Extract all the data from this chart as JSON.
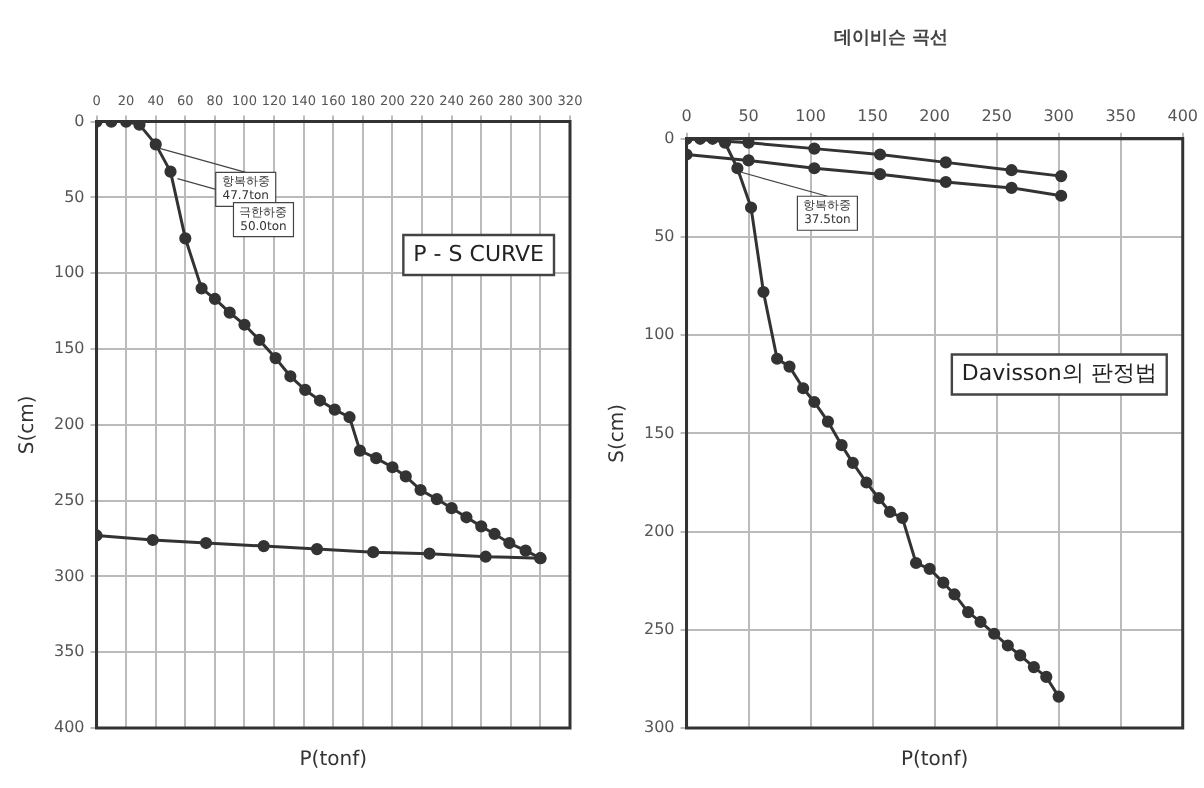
{
  "chart_data": [
    {
      "type": "line",
      "ylabel": "S(cm)",
      "xlabel": "P(tonf)",
      "xlim": [
        0,
        320
      ],
      "xticks": [
        0,
        20,
        40,
        60,
        80,
        100,
        120,
        140,
        160,
        180,
        200,
        220,
        240,
        260,
        280,
        300,
        320
      ],
      "ylim": [
        400,
        0
      ],
      "yticks": [
        0,
        50,
        100,
        150,
        200,
        250,
        300,
        350,
        400
      ],
      "grid": true,
      "legend": false,
      "marker": "circle",
      "line_style": "solid",
      "series": [
        {
          "color": "#333333",
          "x": [
            0,
            10,
            20,
            29,
            40,
            50,
            60,
            71,
            80,
            90,
            100,
            110,
            121,
            131,
            141,
            151,
            161,
            171,
            178,
            189,
            200,
            209,
            219,
            230,
            240,
            250,
            260,
            269,
            279,
            290,
            300
          ],
          "values": [
            0,
            0,
            0,
            2,
            15,
            33,
            77,
            110,
            117,
            126,
            134,
            144,
            156,
            168,
            177,
            184,
            190,
            195,
            217,
            222,
            228,
            234,
            243,
            249,
            255,
            261,
            267,
            272,
            278,
            283,
            288
          ]
        },
        {
          "color": "#333333",
          "x": [
            0,
            38,
            74,
            113,
            149,
            187,
            225,
            263,
            300
          ],
          "values": [
            273,
            276,
            278,
            280,
            282,
            284,
            285,
            287,
            288
          ]
        }
      ],
      "annotations": [
        "P - S CURVE",
        {
          "text": "항복하중 47.7ton",
          "x": 40,
          "y": 15
        },
        {
          "text": "극한하중 50.0ton",
          "x": 52,
          "y": 35
        }
      ]
    },
    {
      "type": "line",
      "title": "데이비슨 곡선",
      "ylabel": "S(cm)",
      "xlabel": "P(tonf)",
      "xlim": [
        0,
        400
      ],
      "xticks": [
        0,
        50,
        100,
        150,
        200,
        250,
        300,
        350,
        400
      ],
      "ylim": [
        300,
        0
      ],
      "yticks": [
        0,
        50,
        100,
        150,
        200,
        250,
        300
      ],
      "grid": true,
      "legend": false,
      "marker": "circle",
      "line_style": "solid",
      "series": [
        {
          "color": "#333333",
          "x": [
            0,
            11,
            21,
            31,
            41,
            52,
            62,
            73,
            83,
            94,
            103,
            114,
            125,
            134,
            145,
            155,
            164,
            174,
            185,
            196,
            207,
            216,
            227,
            237,
            248,
            259,
            269,
            280,
            290,
            300
          ],
          "values": [
            0,
            0,
            0,
            2,
            15,
            35,
            78,
            112,
            116,
            127,
            134,
            144,
            156,
            165,
            175,
            183,
            190,
            193,
            216,
            219,
            226,
            232,
            241,
            246,
            252,
            258,
            263,
            269,
            274,
            284
          ]
        },
        {
          "color": "#333333",
          "x": [
            0,
            50,
            103,
            156,
            209,
            262,
            302
          ],
          "values": [
            0,
            2,
            5,
            8,
            12,
            16,
            19
          ]
        },
        {
          "color": "#333333",
          "x": [
            0,
            50,
            103,
            156,
            209,
            262,
            302
          ],
          "values": [
            8,
            11,
            15,
            18,
            22,
            25,
            29
          ]
        }
      ],
      "annotations": [
        "Davisson의 판정법",
        {
          "text": "항복하중 37.5ton",
          "x": 41,
          "y": 15
        }
      ]
    }
  ]
}
